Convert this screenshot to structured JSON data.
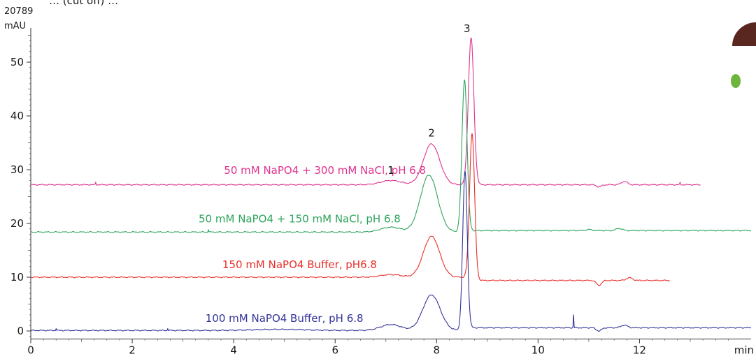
{
  "header_text": "… (cut off) …",
  "logo": {
    "name": "partial-round-logo",
    "colors": [
      "#5a2620",
      "#6fb43c"
    ]
  },
  "chart_data": {
    "type": "line",
    "title": "",
    "xlabel": "min",
    "ylabel": "mAU",
    "y_top_label": "20789",
    "xlim": [
      0,
      14.2
    ],
    "ylim": [
      -1.5,
      58
    ],
    "x_ticks": [
      0,
      2,
      4,
      6,
      8,
      10,
      12
    ],
    "y_ticks": [
      0,
      10,
      20,
      30,
      40,
      50
    ],
    "grid": false,
    "peak_labels": [
      {
        "text": "1",
        "x": 7.1,
        "y": 29.2
      },
      {
        "text": "2",
        "x": 7.9,
        "y": 36.2
      },
      {
        "text": "3",
        "x": 8.6,
        "y": 55.6
      }
    ],
    "series": [
      {
        "name": "50 mM NaPO4 + 300 mM NaCl, pH 6.8",
        "color": "#e0338f",
        "label_at": [
          5.8,
          29.2
        ],
        "baseline": 27.2,
        "start": 0,
        "end": 13.2,
        "peaks": [
          {
            "x": 7.1,
            "h": 0.8,
            "w": 0.2
          },
          {
            "x": 7.9,
            "h": 7.6,
            "w": 0.16
          },
          {
            "x": 8.68,
            "h": 27.3,
            "w": 0.055
          },
          {
            "x": 11.2,
            "h": -0.4,
            "w": 0.05
          },
          {
            "x": 11.7,
            "h": 0.6,
            "w": 0.06
          }
        ],
        "spikes": [
          [
            1.28,
            0.5
          ],
          [
            12.8,
            0.4
          ]
        ]
      },
      {
        "name": "50 mM NaPO4 + 150 mM NaCl, pH 6.8",
        "color": "#2ca45c",
        "label_at": [
          5.3,
          20.2
        ],
        "baseline": 18.4,
        "start": 0,
        "end": 14.2,
        "steps": [
          [
            8.55,
            0.28
          ]
        ],
        "peaks": [
          {
            "x": 7.1,
            "h": 0.9,
            "w": 0.2
          },
          {
            "x": 7.85,
            "h": 10.6,
            "w": 0.17
          },
          {
            "x": 8.55,
            "h": 28.2,
            "w": 0.05
          },
          {
            "x": 11.0,
            "h": 0.2,
            "w": 0.05
          },
          {
            "x": 11.6,
            "h": 0.4,
            "w": 0.06
          }
        ],
        "spikes": [
          [
            3.5,
            0.5
          ]
        ]
      },
      {
        "name": "150 mM NaPO4 Buffer, pH6.8",
        "color": "#e8302a",
        "label_at": [
          5.3,
          11.7
        ],
        "baseline": 10.0,
        "start": 0,
        "end": 12.6,
        "steps": [
          [
            8.7,
            -0.6
          ]
        ],
        "peaks": [
          {
            "x": 7.1,
            "h": 0.5,
            "w": 0.2
          },
          {
            "x": 7.9,
            "h": 7.6,
            "w": 0.16
          },
          {
            "x": 8.7,
            "h": 27.0,
            "w": 0.05
          },
          {
            "x": 11.2,
            "h": -0.9,
            "w": 0.05
          },
          {
            "x": 11.8,
            "h": 0.5,
            "w": 0.06
          }
        ],
        "spikes": []
      },
      {
        "name": "100 mM NaPO4 Buffer, pH 6.8",
        "color": "#34349a",
        "label_at": [
          5.0,
          1.7
        ],
        "baseline": 0.1,
        "start": 0,
        "end": 14.2,
        "steps": [
          [
            8.56,
            0.5
          ]
        ],
        "peaks": [
          {
            "x": 4.9,
            "h": 0.2,
            "w": 0.5
          },
          {
            "x": 7.1,
            "h": 1.1,
            "w": 0.2
          },
          {
            "x": 7.9,
            "h": 6.6,
            "w": 0.17
          },
          {
            "x": 8.56,
            "h": 29.3,
            "w": 0.045
          },
          {
            "x": 11.2,
            "h": -0.6,
            "w": 0.05
          },
          {
            "x": 11.7,
            "h": 0.5,
            "w": 0.06
          }
        ],
        "spikes": [
          [
            0.5,
            0.4
          ],
          [
            2.7,
            0.4
          ],
          [
            10.7,
            2.4
          ]
        ]
      }
    ]
  }
}
